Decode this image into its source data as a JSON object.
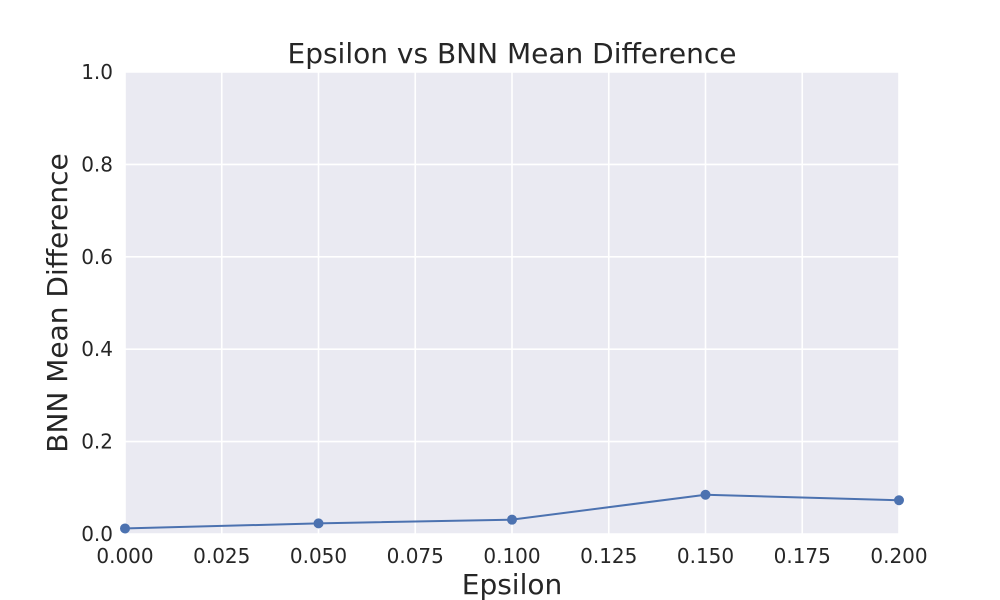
{
  "chart_data": {
    "type": "line",
    "title": "Epsilon vs BNN Mean Difference",
    "xlabel": "Epsilon",
    "ylabel": "BNN Mean Difference",
    "xlim": [
      0.0,
      0.2
    ],
    "ylim": [
      0.0,
      1.0
    ],
    "x_ticks": [
      "0.000",
      "0.025",
      "0.050",
      "0.075",
      "0.100",
      "0.125",
      "0.150",
      "0.175",
      "0.200"
    ],
    "y_ticks": [
      "0.0",
      "0.2",
      "0.4",
      "0.6",
      "0.8",
      "1.0"
    ],
    "grid": true,
    "style": "seaborn-darkgrid",
    "series": [
      {
        "x": [
          0.0,
          0.05,
          0.1,
          0.15,
          0.2
        ],
        "y": [
          0.012,
          0.023,
          0.031,
          0.085,
          0.073
        ],
        "color": "#4c72b0",
        "marker": "circle"
      }
    ],
    "colors": {
      "plot_background": "#eaeaf2",
      "grid": "#ffffff",
      "text": "#262626"
    }
  }
}
